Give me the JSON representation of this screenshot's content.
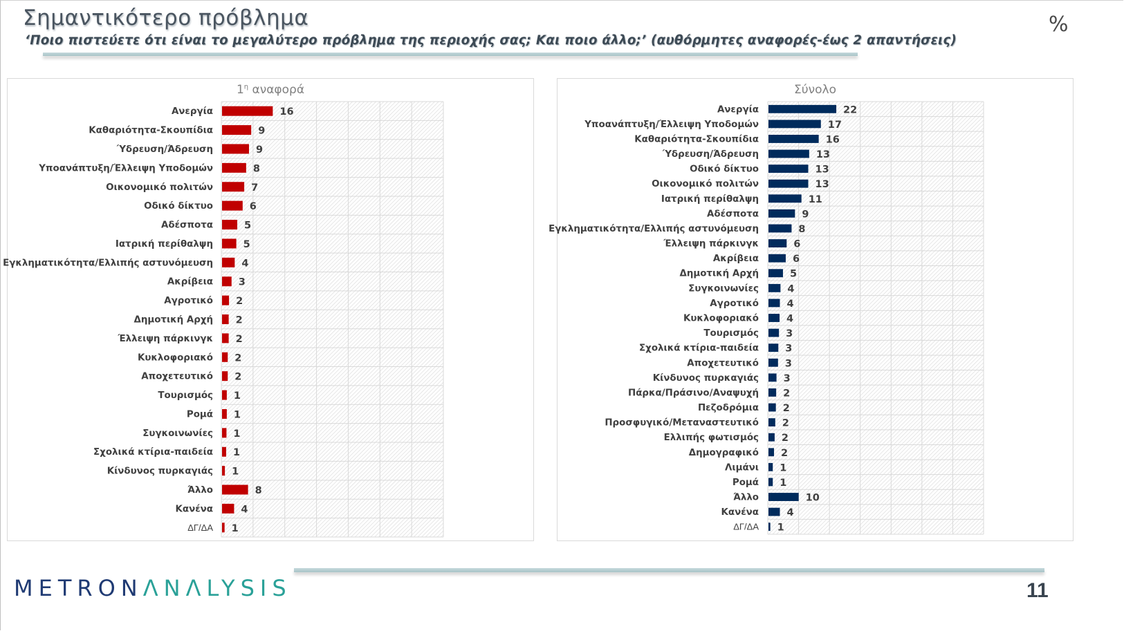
{
  "header": {
    "title": "Σημαντικότερο πρόβλημα",
    "subtitle": "‘Ποιο πιστεύετε ότι είναι το μεγαλύτερο πρόβλημα της περιοχής σας; Και ποιο άλλο;’ (αυθόρμητες αναφορές-έως 2 απαντήσεις)",
    "unit_symbol": "%"
  },
  "footer": {
    "logo_part1": "METRON",
    "logo_part2": "ΛNΛLYSIS",
    "page_number": "11"
  },
  "colors": {
    "first_mention_bar": "#c00000",
    "total_bar": "#002b5c",
    "grid": "#d9d9d9",
    "logo_dark": "#1f3a73",
    "logo_teal": "#2aa198"
  },
  "chart_data": [
    {
      "type": "bar",
      "orientation": "horizontal",
      "title_main": "1",
      "title_sup": "η",
      "title_rest": " αναφορά",
      "title": "1η αναφορά",
      "xlim": [
        0,
        70
      ],
      "grid": true,
      "grid_step": 10,
      "bar_color": "#c00000",
      "categories": [
        "Ανεργία",
        "Καθαριότητα-Σκουπίδια",
        "Ύδρευση/Άδρευση",
        "Υποανάπτυξη/Έλλειψη Υποδομών",
        "Οικονομικό πολιτών",
        "Οδικό δίκτυο",
        "Αδέσποτα",
        "Ιατρική περίθαλψη",
        "Εγκληματικότητα/Ελλιπής αστυνόμευση",
        "Ακρίβεια",
        "Αγροτικό",
        "Δημοτική Αρχή",
        "Έλλειψη πάρκινγκ",
        "Κυκλοφοριακό",
        "Αποχετευτικό",
        "Τουρισμός",
        "Ρομά",
        "Συγκοινωνίες",
        "Σχολικά κτίρια-παιδεία",
        "Κίνδυνος πυρκαγιάς",
        "Άλλο",
        "Κανένα",
        "ΔΓ/ΔΑ"
      ],
      "values": [
        16,
        9,
        9,
        8,
        7,
        6,
        5,
        5,
        4,
        3,
        2,
        2,
        2,
        2,
        2,
        1,
        1,
        1,
        1,
        1,
        8,
        4,
        1
      ],
      "bar_lengths": [
        16,
        9.2,
        8.5,
        7.6,
        7,
        6.5,
        4.8,
        4.5,
        4,
        3,
        2.2,
        2.1,
        2.1,
        1.8,
        1.8,
        1.5,
        1.5,
        1.4,
        1.3,
        0.9,
        8.2,
        3.8,
        0.8
      ]
    },
    {
      "type": "bar",
      "orientation": "horizontal",
      "title": "Σύνολο",
      "xlim": [
        0,
        70
      ],
      "grid": true,
      "grid_step": 10,
      "bar_color": "#002b5c",
      "categories": [
        "Ανεργία",
        "Υποανάπτυξη/Έλλειψη Υποδομών",
        "Καθαριότητα-Σκουπίδια",
        "Ύδρευση/Άδρευση",
        "Οδικό δίκτυο",
        "Οικονομικό πολιτών",
        "Ιατρική περίθαλψη",
        "Αδέσποτα",
        "Εγκληματικότητα/Ελλιπής αστυνόμευση",
        "Έλλειψη πάρκινγκ",
        "Ακρίβεια",
        "Δημοτική Αρχή",
        "Συγκοινωνίες",
        "Αγροτικό",
        "Κυκλοφοριακό",
        "Τουρισμός",
        "Σχολικά κτίρια-παιδεία",
        "Αποχετευτικό",
        "Κίνδυνος πυρκαγιάς",
        "Πάρκα/Πράσινο/Αναψυχή",
        "Πεζοδρόμια",
        "Προσφυγικό/Μεταναστευτικό",
        "Ελλιπής φωτισμός",
        "Δημογραφικό",
        "Λιμάνι",
        "Ρομά",
        "Άλλο",
        "Κανένα",
        "ΔΓ/ΔΑ"
      ],
      "values": [
        22,
        17,
        16,
        13,
        13,
        13,
        11,
        9,
        8,
        6,
        6,
        5,
        4,
        4,
        4,
        3,
        3,
        3,
        3,
        2,
        2,
        2,
        2,
        2,
        1,
        1,
        10,
        4,
        1
      ],
      "bar_lengths": [
        22,
        17,
        16.3,
        13.2,
        12.9,
        12.9,
        10.7,
        8.6,
        7.5,
        5.9,
        5.6,
        4.7,
        3.9,
        3.7,
        3.6,
        3.4,
        3.2,
        3.1,
        2.6,
        2.5,
        2.4,
        2.2,
        2.0,
        1.8,
        1.4,
        1.4,
        9.8,
        3.7,
        0.6
      ]
    }
  ]
}
